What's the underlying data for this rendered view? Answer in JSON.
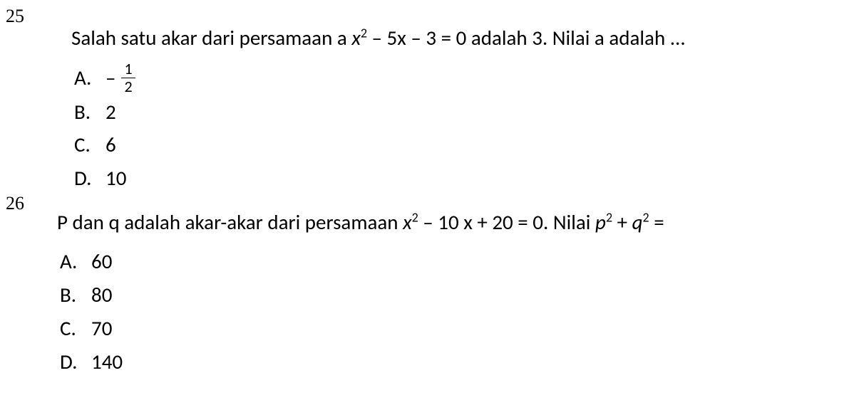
{
  "colors": {
    "background": "#ffffff",
    "text": "#000000"
  },
  "typography": {
    "body_font": "Calibri, Arial, sans-serif",
    "number_font": "Times New Roman, serif",
    "body_fontsize": 29,
    "number_fontsize": 26
  },
  "questions": [
    {
      "number": "25",
      "prompt_parts": {
        "t1": "Salah satu akar dari persamaan a ",
        "var1": "x",
        "sup1": "2",
        "t2": " – 5x – 3 = 0 adalah 3. Nilai a adalah ..."
      },
      "options": [
        {
          "letter": "A.",
          "type": "fraction",
          "prefix": "–",
          "num": "1",
          "den": "2"
        },
        {
          "letter": "B.",
          "type": "plain",
          "value": "2"
        },
        {
          "letter": "C.",
          "type": "plain",
          "value": "6"
        },
        {
          "letter": "D.",
          "type": "plain",
          "value": "10"
        }
      ]
    },
    {
      "number": "26",
      "prompt_parts": {
        "t1": "P dan q adalah akar-akar dari persamaan ",
        "var1": "x",
        "sup1": "2",
        "t2": " – 10 x + 20 = 0. Nilai ",
        "var2": "p",
        "sup2": "2",
        "t3": " + ",
        "var3": "q",
        "sup3": "2",
        "t4": " ="
      },
      "options": [
        {
          "letter": "A.",
          "type": "plain",
          "value": "60"
        },
        {
          "letter": "B.",
          "type": "plain",
          "value": "80"
        },
        {
          "letter": "C.",
          "type": "plain",
          "value": "70"
        },
        {
          "letter": "D.",
          "type": "plain",
          "value": "140"
        }
      ]
    }
  ]
}
